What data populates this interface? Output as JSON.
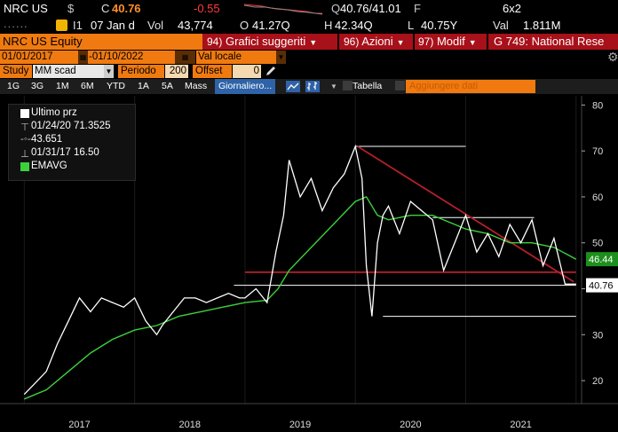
{
  "quote": {
    "ticker": "NRC US",
    "currency": "$",
    "last_label": "C",
    "last": "40.76",
    "change": "-0.55",
    "bid_ask_label": "Q",
    "bid_ask": "40.76/41.01",
    "bid_ask_flag": "F",
    "size": "6x2"
  },
  "info": {
    "dots": "......",
    "time_label": "I1",
    "date": "07 Jan d",
    "vol_label": "Vol",
    "vol": "43,774",
    "open_label": "O",
    "open": "41.27Q",
    "high_label": "H",
    "high": "42.34Q",
    "low_label": "L",
    "low": "40.75Y",
    "val_label": "Val",
    "val": "1.811M"
  },
  "header": {
    "security": "NRC US Equity",
    "menu": [
      {
        "num": "94)",
        "label": "Grafici suggeriti"
      },
      {
        "num": "96)",
        "label": "Azioni"
      },
      {
        "num": "97)",
        "label": "Modif"
      },
      {
        "num": "",
        "label": "G 749: National Rese"
      }
    ]
  },
  "range": {
    "start": "01/01/2017",
    "end": "01/10/2022",
    "currency_mode": "Val locale"
  },
  "study": {
    "label": "Study",
    "value": "MM scad",
    "period_label": "Periodo",
    "period": "200",
    "offset_label": "Offset",
    "offset": "0"
  },
  "toolbar": {
    "periods": [
      "1G",
      "3G",
      "1M",
      "6M",
      "YTD",
      "1A",
      "5A",
      "Mass"
    ],
    "frequency": "Giornaliero",
    "table": "Tabella",
    "add_data": "Aggiungere dati"
  },
  "legend": {
    "last_price": "Ultimo prz",
    "high": "01/24/20 71.3525",
    "average": "43.651",
    "low": "01/31/17 16.50",
    "ema": "EMAVG"
  },
  "colors": {
    "orange": "#f07a10",
    "red_bar": "#a8101a",
    "price_line": "#ffffff",
    "ema_line": "#3cd13c",
    "trend_line": "#b3202a"
  },
  "chart_data": {
    "type": "line",
    "x_labels": [
      "2017",
      "2018",
      "2019",
      "2020",
      "2021"
    ],
    "y_ticks": [
      20,
      30,
      40,
      50,
      60,
      70,
      80
    ],
    "ylim": [
      15,
      82
    ],
    "last_price_tag": "40.76",
    "ema_tag": "46.44",
    "series": [
      {
        "name": "Ultimo prz",
        "x": [
          2017.0,
          2017.08,
          2017.2,
          2017.3,
          2017.4,
          2017.5,
          2017.6,
          2017.7,
          2017.8,
          2017.9,
          2018.0,
          2018.1,
          2018.2,
          2018.25,
          2018.35,
          2018.45,
          2018.55,
          2018.65,
          2018.75,
          2018.85,
          2018.95,
          2019.0,
          2019.1,
          2019.2,
          2019.28,
          2019.35,
          2019.4,
          2019.5,
          2019.6,
          2019.7,
          2019.8,
          2019.9,
          2020.0,
          2020.06,
          2020.1,
          2020.15,
          2020.2,
          2020.25,
          2020.3,
          2020.4,
          2020.5,
          2020.6,
          2020.7,
          2020.8,
          2020.9,
          2021.0,
          2021.05,
          2021.1,
          2021.2,
          2021.3,
          2021.4,
          2021.5,
          2021.6,
          2021.7,
          2021.8,
          2021.9,
          2022.0
        ],
        "values": [
          17,
          19,
          22,
          28,
          33,
          38,
          35,
          38,
          37,
          36,
          38,
          33,
          30,
          32,
          35,
          38,
          38,
          37,
          38,
          39,
          38,
          38,
          40,
          37,
          48,
          56,
          68,
          60,
          64,
          57,
          62,
          65,
          71,
          64,
          45,
          34,
          50,
          56,
          58,
          52,
          59,
          57,
          55,
          44,
          50,
          56,
          52,
          48,
          52,
          47,
          54,
          50,
          55,
          45,
          51,
          41,
          41
        ]
      },
      {
        "name": "EMAVG",
        "x": [
          2017.0,
          2017.2,
          2017.4,
          2017.6,
          2017.8,
          2018.0,
          2018.2,
          2018.4,
          2018.6,
          2018.8,
          2019.0,
          2019.2,
          2019.3,
          2019.4,
          2019.6,
          2019.8,
          2020.0,
          2020.1,
          2020.2,
          2020.3,
          2020.5,
          2020.7,
          2020.9,
          2021.0,
          2021.2,
          2021.4,
          2021.6,
          2021.8,
          2022.0
        ],
        "values": [
          16,
          18,
          22,
          26,
          29,
          31,
          32,
          34,
          35,
          36,
          37,
          37.5,
          40,
          44,
          49,
          54,
          59,
          60,
          56,
          55,
          56,
          56,
          54,
          53,
          52,
          50,
          50,
          49,
          46.44
        ]
      }
    ],
    "trend_lines": [
      {
        "x": [
          2020.02,
          2021.98
        ],
        "values": [
          71,
          41.5
        ],
        "color": "#b3202a"
      },
      {
        "x": [
          2019.0,
          2022.0
        ],
        "values": [
          43.6,
          43.6
        ],
        "color": "#b3202a"
      }
    ],
    "levels": [
      {
        "x": [
          2020.0,
          2021.0
        ],
        "value": 71,
        "color": "#ffffff"
      },
      {
        "x": [
          2020.7,
          2021.62
        ],
        "value": 55.5,
        "color": "#ffffff"
      },
      {
        "x": [
          2018.9,
          2022.0
        ],
        "value": 40.76,
        "color": "#ffffff"
      },
      {
        "x": [
          2020.25,
          2022.0
        ],
        "value": 34,
        "color": "#ffffff"
      }
    ]
  }
}
